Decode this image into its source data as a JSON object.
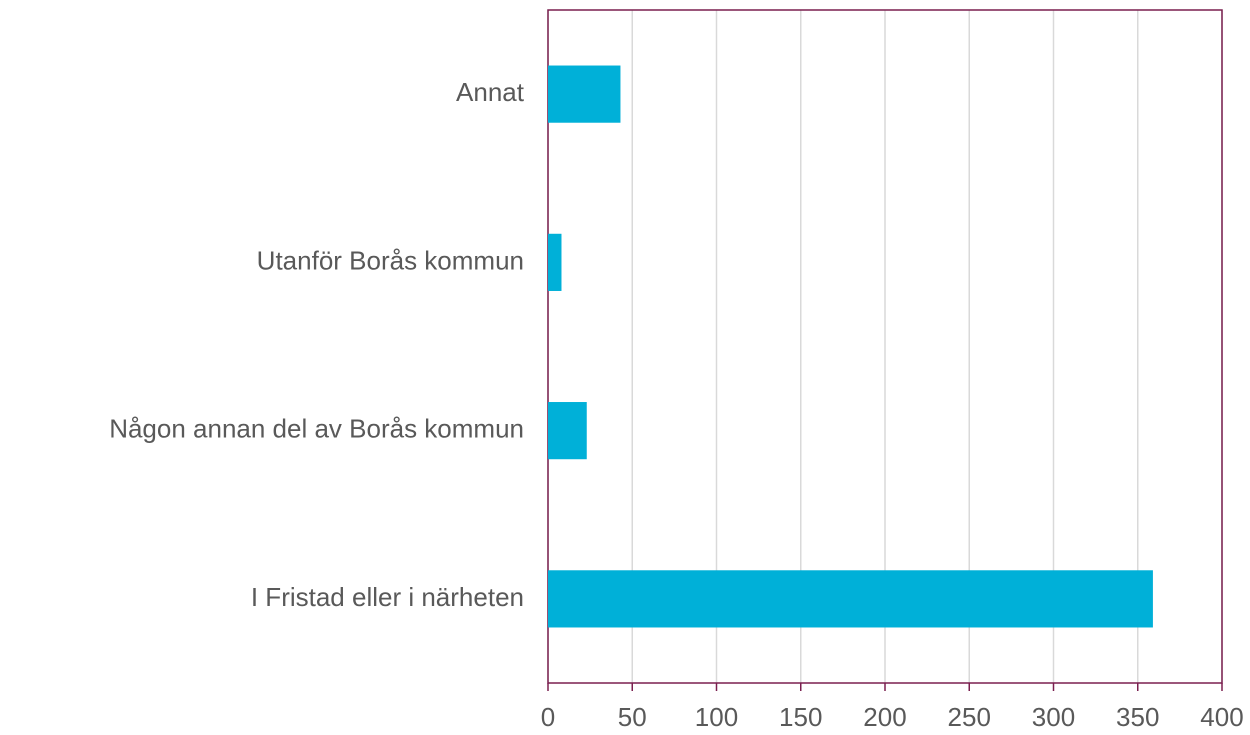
{
  "chart_data": {
    "type": "barh",
    "categories": [
      "Annat",
      "Utanför Borås kommun",
      "Någon annan del av Borås kommun",
      "I Fristad eller i närheten"
    ],
    "values": [
      43,
      8,
      23,
      359
    ],
    "color": "#00b0d8",
    "xlim": [
      0,
      400
    ],
    "xticks": [
      0,
      50,
      100,
      150,
      200,
      250,
      300,
      350,
      400
    ],
    "grid": true
  }
}
